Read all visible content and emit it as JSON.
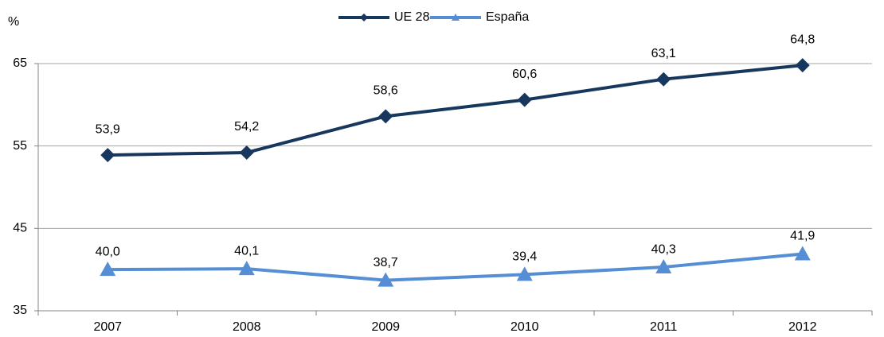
{
  "chart_data": {
    "type": "line",
    "y_label": "%",
    "categories": [
      "2007",
      "2008",
      "2009",
      "2010",
      "2011",
      "2012"
    ],
    "series": [
      {
        "name": "UE 28",
        "color": "#17375e",
        "marker": "diamond",
        "values": [
          53.9,
          54.2,
          58.6,
          60.6,
          63.1,
          64.8
        ],
        "value_labels": [
          "53,9",
          "54,2",
          "58,6",
          "60,6",
          "63,1",
          "64,8"
        ]
      },
      {
        "name": "España",
        "color": "#558ed5",
        "marker": "triangle",
        "values": [
          40.0,
          40.1,
          38.7,
          39.4,
          40.3,
          41.9
        ],
        "value_labels": [
          "40,0",
          "40,1",
          "38,7",
          "39,4",
          "40,3",
          "41,9"
        ]
      }
    ],
    "ylim": [
      35,
      65
    ],
    "yticks": [
      35,
      45,
      55,
      65
    ],
    "grid": true,
    "legend": "top"
  }
}
